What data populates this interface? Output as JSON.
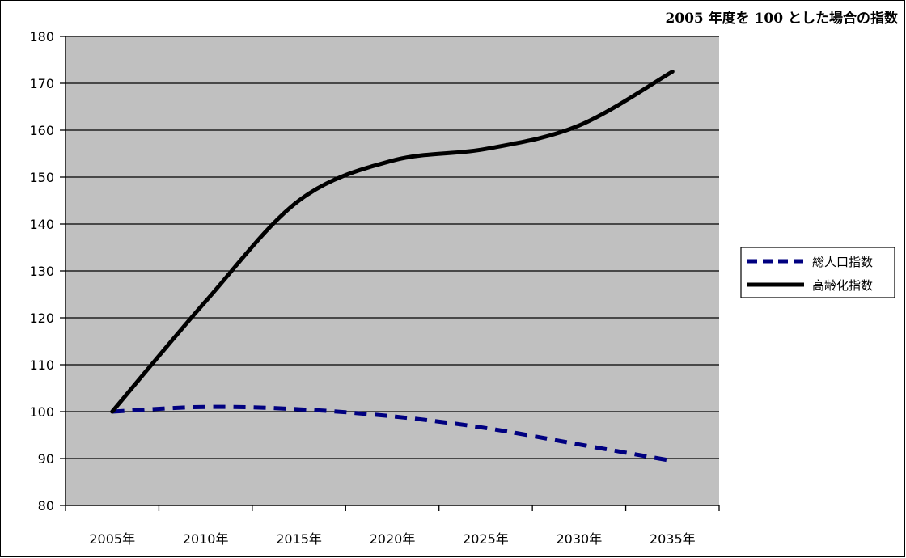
{
  "chart_data": {
    "type": "line",
    "title": "",
    "subtitle": "2005 年度を 100 とした場合の指数",
    "xlabel": "",
    "ylabel": "",
    "categories": [
      "2005年",
      "2010年",
      "2015年",
      "2020年",
      "2025年",
      "2030年",
      "2035年"
    ],
    "series": [
      {
        "name": "総人口指数",
        "values": [
          100,
          101,
          100.5,
          99,
          96.5,
          93,
          89.5
        ],
        "color": "#000080",
        "style": "dashed"
      },
      {
        "name": "高齢化指数",
        "values": [
          100,
          123.5,
          145,
          153.5,
          156,
          161,
          172.5
        ],
        "color": "#000000",
        "style": "solid"
      }
    ],
    "ylim": [
      80,
      180
    ],
    "yticks": [
      80,
      90,
      100,
      110,
      120,
      130,
      140,
      150,
      160,
      170,
      180
    ],
    "grid": true,
    "plot_background": "#c0c0c0",
    "legend_position": "right"
  }
}
